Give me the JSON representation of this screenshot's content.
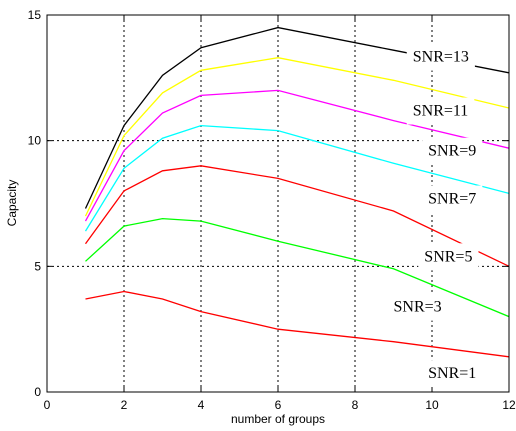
{
  "chart_data": {
    "type": "line",
    "title": "",
    "xlabel": "number of groups",
    "ylabel": "Capacity",
    "xlim": [
      0,
      12
    ],
    "ylim": [
      0,
      15
    ],
    "xticks": [
      0,
      2,
      4,
      6,
      8,
      10,
      12
    ],
    "xtick_labels": [
      "0",
      "2",
      "4",
      "6",
      "8",
      "10",
      "12"
    ],
    "yticks": [
      0,
      5,
      10,
      15
    ],
    "ytick_labels": [
      "0",
      "5",
      "10",
      "15"
    ],
    "grid": true,
    "legend": "none",
    "series": [
      {
        "name": "SNR=13",
        "color": "#000000",
        "x": [
          1,
          2,
          3,
          4,
          6,
          9,
          12
        ],
        "y": [
          7.3,
          10.6,
          12.6,
          13.7,
          14.5,
          13.6,
          12.7
        ]
      },
      {
        "name": "SNR=11",
        "color": "#ffff00",
        "x": [
          1,
          2,
          3,
          4,
          6,
          9,
          12
        ],
        "y": [
          7.0,
          10.2,
          11.9,
          12.8,
          13.3,
          12.4,
          11.3
        ]
      },
      {
        "name": "SNR=9",
        "color": "#ff00ff",
        "x": [
          1,
          2,
          3,
          4,
          6,
          9,
          12
        ],
        "y": [
          6.8,
          9.6,
          11.1,
          11.8,
          12.0,
          10.8,
          9.7
        ]
      },
      {
        "name": "SNR=7",
        "color": "#00ffff",
        "x": [
          1,
          2,
          3,
          4,
          6,
          9,
          12
        ],
        "y": [
          6.4,
          8.9,
          10.1,
          10.6,
          10.4,
          9.1,
          7.9
        ]
      },
      {
        "name": "SNR=5",
        "color": "#ff0000",
        "x": [
          1,
          2,
          3,
          4,
          6,
          9,
          12
        ],
        "y": [
          5.9,
          8.0,
          8.8,
          9.0,
          8.5,
          7.2,
          5.0
        ]
      },
      {
        "name": "SNR=3",
        "color": "#00ff00",
        "x": [
          1,
          2,
          3,
          4,
          6,
          9,
          12
        ],
        "y": [
          5.2,
          6.6,
          6.9,
          6.8,
          6.0,
          4.9,
          3.0
        ]
      },
      {
        "name": "SNR=1",
        "color": "#ff0000",
        "x": [
          1,
          2,
          3,
          4,
          6,
          9,
          12
        ],
        "y": [
          3.7,
          4.0,
          3.7,
          3.2,
          2.5,
          2.0,
          1.4
        ]
      }
    ],
    "annotations": [
      {
        "text": "SNR=13",
        "x": 9.5,
        "y": 13.15
      },
      {
        "text": "SNR=11",
        "x": 9.5,
        "y": 11.0
      },
      {
        "text": "SNR=9",
        "x": 9.9,
        "y": 9.4
      },
      {
        "text": "SNR=7",
        "x": 9.9,
        "y": 7.5
      },
      {
        "text": "SNR=5",
        "x": 9.8,
        "y": 5.2
      },
      {
        "text": "SNR=3",
        "x": 9.0,
        "y": 3.2
      },
      {
        "text": "SNR=1",
        "x": 9.9,
        "y": 0.55
      }
    ]
  }
}
